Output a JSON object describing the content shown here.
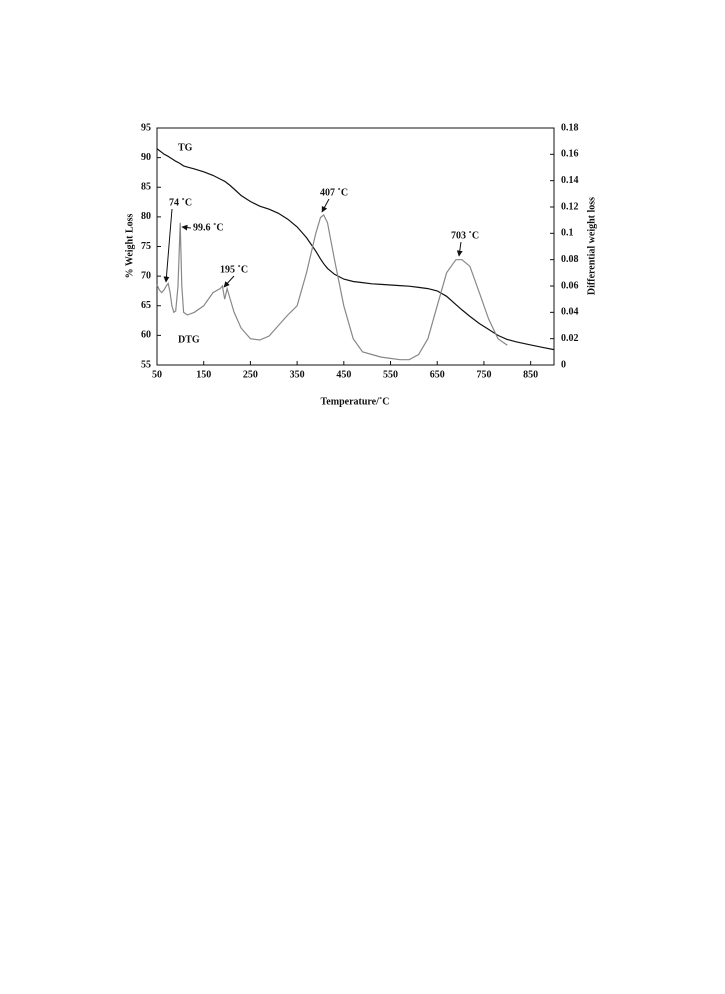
{
  "chart_data": {
    "type": "line",
    "x_label": "Temperature/˚C",
    "y_label": "% Weight Loss",
    "y2_label": "Differential weight loss",
    "xlim": [
      50,
      900
    ],
    "xticks": [
      50,
      150,
      250,
      350,
      450,
      550,
      650,
      750,
      850
    ],
    "ylim": [
      55,
      95
    ],
    "yticks": [
      55,
      60,
      65,
      70,
      75,
      80,
      85,
      90,
      95
    ],
    "y2lim": [
      0,
      0.18
    ],
    "y2ticks": [
      0,
      0.02,
      0.04,
      0.06,
      0.08,
      0.1,
      0.12,
      0.14,
      0.16,
      0.18
    ],
    "x": [
      50,
      55,
      60,
      65,
      70,
      74,
      78,
      82,
      86,
      90,
      95,
      99.6,
      103,
      107,
      115,
      130,
      150,
      170,
      185,
      190,
      195,
      200,
      205,
      215,
      230,
      250,
      270,
      290,
      310,
      330,
      350,
      370,
      390,
      400,
      407,
      415,
      430,
      450,
      470,
      490,
      510,
      530,
      550,
      570,
      590,
      610,
      630,
      650,
      670,
      690,
      703,
      720,
      740,
      760,
      780,
      800,
      820,
      850,
      880,
      900
    ],
    "series": [
      {
        "name": "TG",
        "color": "#111111",
        "values": [
          91.5,
          91.2,
          90.9,
          90.6,
          90.4,
          90.2,
          90.0,
          89.8,
          89.6,
          89.4,
          89.2,
          89.0,
          88.8,
          88.6,
          88.4,
          88.1,
          87.6,
          87.0,
          86.4,
          86.2,
          86.0,
          85.7,
          85.4,
          84.7,
          83.6,
          82.6,
          81.8,
          81.3,
          80.6,
          79.6,
          78.3,
          76.5,
          74.2,
          72.9,
          72.1,
          71.3,
          70.3,
          69.5,
          69.1,
          68.9,
          68.7,
          68.6,
          68.5,
          68.4,
          68.3,
          68.1,
          67.9,
          67.5,
          66.6,
          65.2,
          64.3,
          63.2,
          62.0,
          61.0,
          60.0,
          59.3,
          58.9,
          58.4,
          57.9,
          57.6
        ]
      },
      {
        "name": "DTG",
        "color": "#888888",
        "axis": "y2",
        "values": [
          0.061,
          0.057,
          0.055,
          0.057,
          0.06,
          0.062,
          0.055,
          0.045,
          0.04,
          0.041,
          0.06,
          0.108,
          0.06,
          0.04,
          0.038,
          0.04,
          0.045,
          0.055,
          0.058,
          0.06,
          0.05,
          0.058,
          0.052,
          0.04,
          0.028,
          0.02,
          0.019,
          0.022,
          0.03,
          0.038,
          0.045,
          0.07,
          0.1,
          0.112,
          0.114,
          0.108,
          0.08,
          0.045,
          0.02,
          0.01,
          0.008,
          0.006,
          0.005,
          0.004,
          0.004,
          0.008,
          0.02,
          0.045,
          0.07,
          0.08,
          0.08,
          0.075,
          0.055,
          0.035,
          0.02,
          0.015,
          null,
          null,
          null,
          null
        ]
      }
    ],
    "annotations": [
      "74 ˚C",
      "99.6 ˚C",
      "195 ˚C",
      "407 ˚C",
      "703 ˚C"
    ]
  }
}
